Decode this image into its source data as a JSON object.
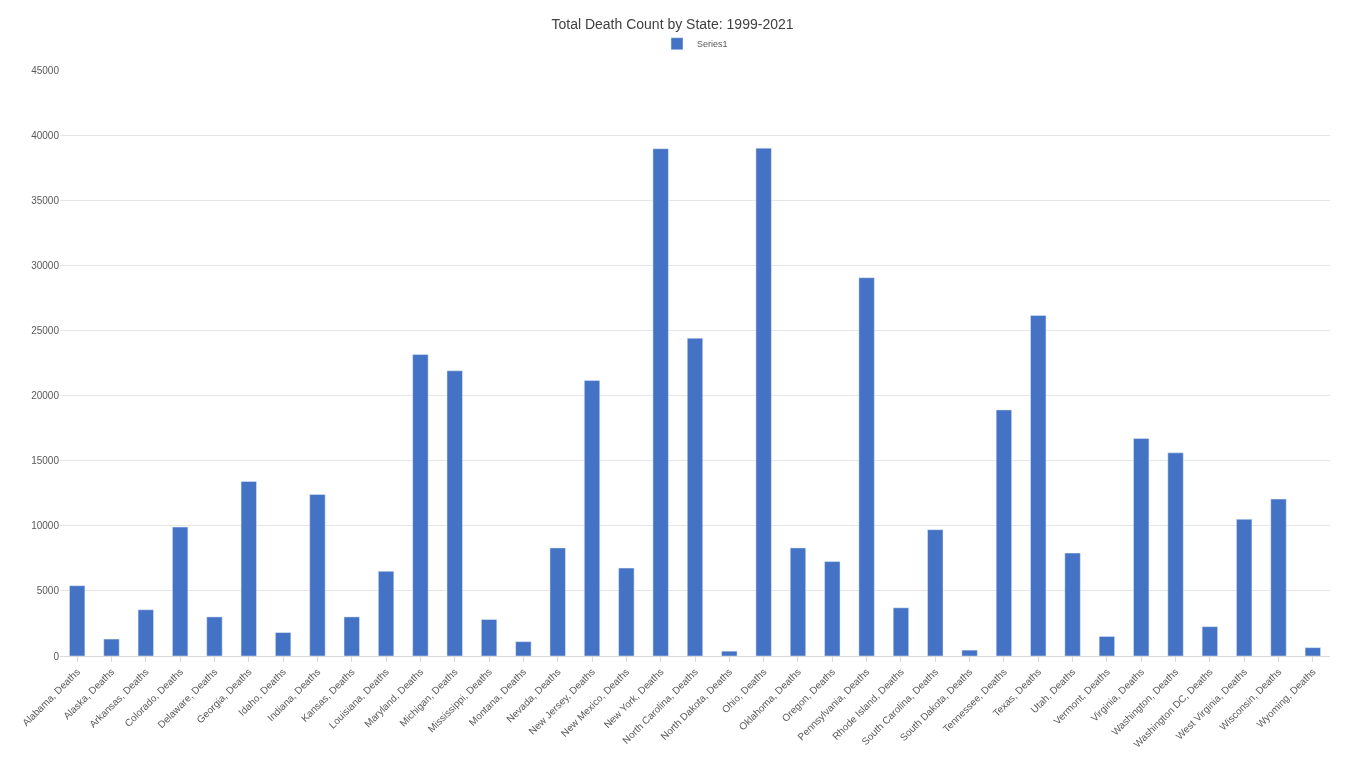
{
  "chart_data": {
    "type": "bar",
    "title": "Total Death Count by State: 1999-2021",
    "categories": [
      "Alabama, Deaths",
      "Alaska, Deaths",
      "Arkansas, Deaths",
      "Colorado, Deaths",
      "Delaware, Deaths",
      "Georgia, Deaths",
      "Idaho, Deaths",
      "Indiana, Deaths",
      "Kansas, Deaths",
      "Louisiana, Deaths",
      "Maryland, Deaths",
      "Michigan, Deaths",
      "Mississippi, Deaths",
      "Montana, Deaths",
      "Nevada, Deaths",
      "New Jersey, Deaths",
      "New Mexico, Deaths",
      "New York, Deaths",
      "North Carolina, Deaths",
      "North Dakota, Deaths",
      "Ohio, Deaths",
      "Oklahoma, Deaths",
      "Oregon, Deaths",
      "Pennsylvania, Deaths",
      "Rhode Island, Deaths",
      "South Carolina, Deaths",
      "South Dakota, Deaths",
      "Tennessee, Deaths",
      "Texas, Deaths",
      "Utah, Deaths",
      "Vermont, Deaths",
      "Virginia, Deaths",
      "Washington, Deaths",
      "Washington DC, Deaths",
      "West Virginia, Deaths",
      "Wisconsin, Deaths",
      "Wyoming, Deaths"
    ],
    "series": [
      {
        "name": "Series1",
        "color": "#4472c4",
        "values": [
          5400,
          1300,
          3550,
          9900,
          3000,
          13400,
          1800,
          12400,
          3000,
          6500,
          23150,
          21900,
          2800,
          1100,
          8300,
          21150,
          6750,
          38950,
          24400,
          370,
          39000,
          8300,
          7250,
          29050,
          3700,
          9700,
          450,
          18900,
          26150,
          7900,
          1500,
          16700,
          15600,
          2250,
          10500,
          12050,
          640
        ]
      }
    ],
    "ylim": [
      0,
      45000
    ],
    "yticks": [
      0,
      5000,
      10000,
      15000,
      20000,
      25000,
      30000,
      35000,
      40000,
      45000
    ],
    "grid": "y",
    "legend": "top"
  }
}
